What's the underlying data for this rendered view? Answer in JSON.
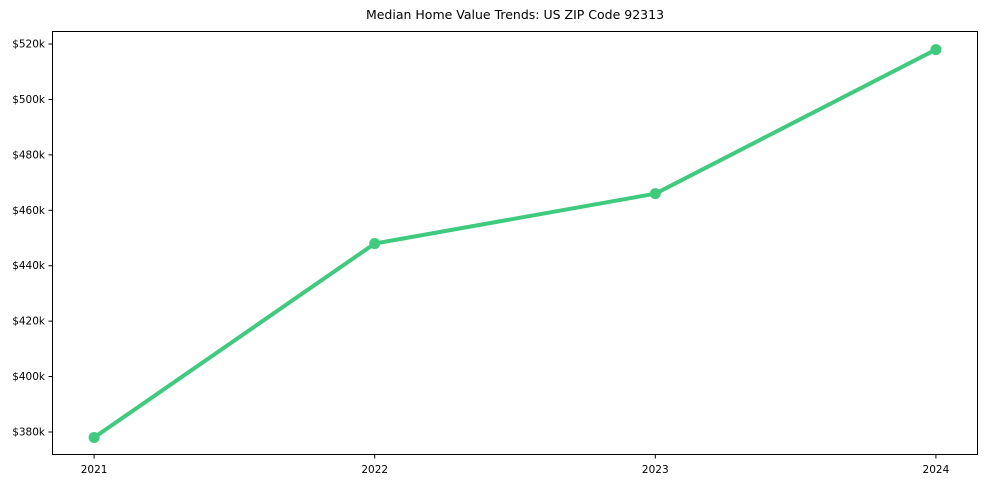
{
  "title": "Median Home Value Trends: US ZIP Code 92313",
  "colors": {
    "line": "#3ecb7d",
    "axis": "#000000",
    "text": "#000000",
    "background": "#ffffff"
  },
  "chart_data": {
    "type": "line",
    "title": "Median Home Value Trends: US ZIP Code 92313",
    "xlabel": "",
    "ylabel": "",
    "x": [
      2021,
      2022,
      2023,
      2024
    ],
    "x_tick_labels": [
      "2021",
      "2022",
      "2023",
      "2024"
    ],
    "values": [
      378000,
      448000,
      466000,
      518000
    ],
    "y_ticks": [
      {
        "value": 380000,
        "label": "$380k"
      },
      {
        "value": 400000,
        "label": "$400k"
      },
      {
        "value": 420000,
        "label": "$420k"
      },
      {
        "value": 440000,
        "label": "$440k"
      },
      {
        "value": 460000,
        "label": "$460k"
      },
      {
        "value": 480000,
        "label": "$480k"
      },
      {
        "value": 500000,
        "label": "$500k"
      },
      {
        "value": 520000,
        "label": "$520k"
      }
    ],
    "xlim": [
      2020.85,
      2024.15
    ],
    "ylim": [
      371700,
      524700
    ],
    "grid": false,
    "legend": null,
    "line_width": 4,
    "marker_radius": 5.5
  }
}
